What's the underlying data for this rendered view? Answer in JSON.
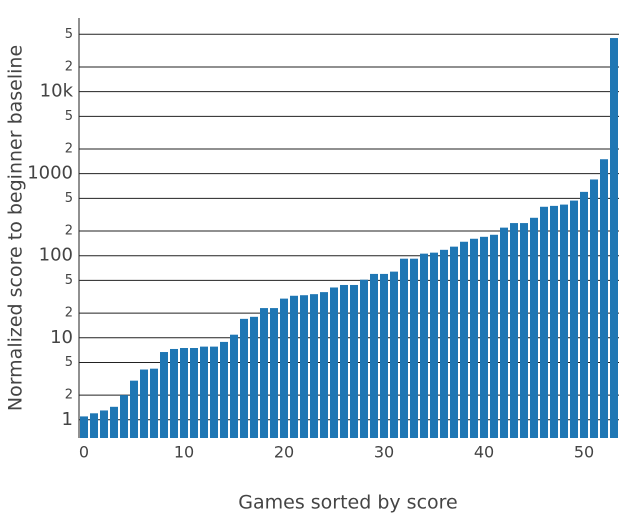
{
  "chart_data": {
    "type": "bar",
    "xlabel": "Games sorted by score",
    "ylabel": "Normalized score to beginner baseline",
    "x": [
      0,
      1,
      2,
      3,
      4,
      5,
      6,
      7,
      8,
      9,
      10,
      11,
      12,
      13,
      14,
      15,
      16,
      17,
      18,
      19,
      20,
      21,
      22,
      23,
      24,
      25,
      26,
      27,
      28,
      29,
      30,
      31,
      32,
      33,
      34,
      35,
      36,
      37,
      38,
      39,
      40,
      41,
      42,
      43,
      44,
      45,
      46,
      47,
      48,
      49,
      50,
      51,
      52,
      53
    ],
    "values": [
      1.1,
      1.2,
      1.3,
      1.44,
      2.0,
      3.0,
      4.1,
      4.2,
      6.7,
      7.3,
      7.5,
      7.5,
      7.8,
      7.8,
      8.9,
      10.9,
      17,
      18,
      23,
      23,
      30,
      32.5,
      33,
      34,
      36,
      41,
      44,
      44,
      51,
      60,
      60,
      64,
      92,
      92,
      106,
      109,
      118,
      129,
      148,
      161,
      170,
      180,
      220,
      250,
      250,
      290,
      395,
      405,
      420,
      470,
      600,
      850,
      1500,
      45000
    ],
    "color": "#1f77b4",
    "xlim": [
      -0.5,
      53.5
    ],
    "xticks": [
      0,
      10,
      20,
      30,
      40,
      50
    ],
    "ylim": [
      0.6,
      79000
    ],
    "log_y": true,
    "grid": true,
    "yticks": [
      1,
      2,
      5,
      10,
      {
        "value": 20,
        "label": "2"
      },
      {
        "value": 50,
        "label": "5"
      },
      100,
      {
        "value": 200,
        "label": "2"
      },
      {
        "value": 500,
        "label": "5"
      },
      1000,
      {
        "value": 2000,
        "label": "2"
      },
      {
        "value": 5000,
        "label": "5"
      },
      {
        "value": 10000,
        "label": "10k"
      },
      {
        "value": 20000,
        "label": "2"
      },
      {
        "value": 50000,
        "label": "5"
      }
    ]
  }
}
